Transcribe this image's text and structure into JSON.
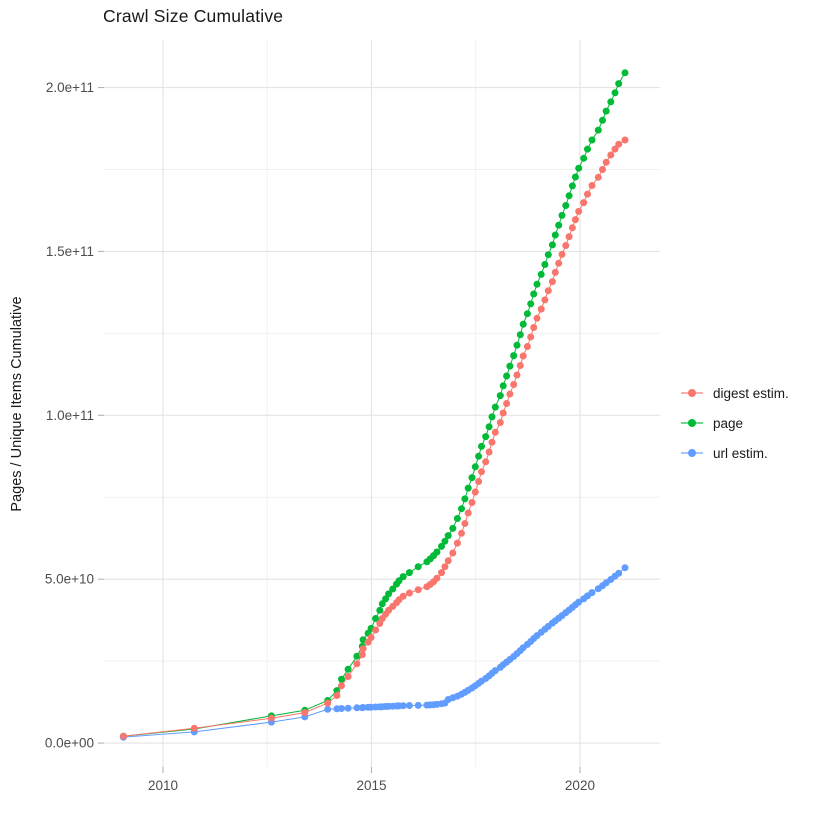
{
  "title": "Crawl Size Cumulative",
  "chart_data": {
    "type": "scatter",
    "title": "Crawl Size Cumulative",
    "xlabel": "",
    "ylabel": "Pages / Unique Items Cumulative",
    "y_unit": "billions of pages / unique items",
    "x_unit": "year",
    "grid": true,
    "legend_position": "right",
    "xlim": [
      2008.585,
      2021.92
    ],
    "ylim_billions": [
      -7.3,
      214.5
    ],
    "x_ticks": {
      "major": [
        2010,
        2015,
        2020
      ],
      "minor": [
        2012.5,
        2017.5
      ],
      "labels": [
        "2010",
        "2015",
        "2020"
      ]
    },
    "y_ticks": {
      "major_billions": [
        0,
        50,
        100,
        150,
        200
      ],
      "minor_billions": [
        25,
        75,
        125,
        175
      ],
      "labels": [
        "0.0e+00",
        "5.0e+10",
        "1.0e+11",
        "1.5e+11",
        "2.0e+11"
      ]
    },
    "series": [
      {
        "name": "digest estim.",
        "color": "#F8766D",
        "points": [
          [
            2009.05,
            2.1
          ],
          [
            2010.75,
            4.5
          ],
          [
            2012.6,
            7.6
          ],
          [
            2013.4,
            9.3
          ],
          [
            2013.95,
            12.2
          ],
          [
            2014.17,
            14.5
          ],
          [
            2014.28,
            17.5
          ],
          [
            2014.44,
            20.3
          ],
          [
            2014.65,
            24.2
          ],
          [
            2014.78,
            27.0
          ],
          [
            2014.8,
            28.8
          ],
          [
            2014.92,
            30.8
          ],
          [
            2014.99,
            32.2
          ],
          [
            2015.1,
            34.5
          ],
          [
            2015.2,
            36.5
          ],
          [
            2015.26,
            38.0
          ],
          [
            2015.34,
            39.3
          ],
          [
            2015.41,
            40.5
          ],
          [
            2015.51,
            41.7
          ],
          [
            2015.6,
            42.8
          ],
          [
            2015.66,
            43.7
          ],
          [
            2015.76,
            44.8
          ],
          [
            2015.91,
            45.8
          ],
          [
            2016.12,
            46.8
          ],
          [
            2016.33,
            47.7
          ],
          [
            2016.41,
            48.4
          ],
          [
            2016.49,
            49.2
          ],
          [
            2016.57,
            50.3
          ],
          [
            2016.68,
            52.0
          ],
          [
            2016.76,
            53.8
          ],
          [
            2016.84,
            55.6
          ],
          [
            2016.95,
            58.0
          ],
          [
            2017.06,
            61.0
          ],
          [
            2017.16,
            64.0
          ],
          [
            2017.24,
            67.0
          ],
          [
            2017.32,
            70.2
          ],
          [
            2017.41,
            73.4
          ],
          [
            2017.49,
            76.6
          ],
          [
            2017.57,
            79.8
          ],
          [
            2017.64,
            82.8
          ],
          [
            2017.74,
            85.8
          ],
          [
            2017.82,
            88.8
          ],
          [
            2017.89,
            91.8
          ],
          [
            2017.97,
            94.8
          ],
          [
            2018.09,
            97.8
          ],
          [
            2018.16,
            100.7
          ],
          [
            2018.24,
            103.6
          ],
          [
            2018.32,
            106.5
          ],
          [
            2018.41,
            109.4
          ],
          [
            2018.49,
            112.3
          ],
          [
            2018.57,
            115.2
          ],
          [
            2018.64,
            118.1
          ],
          [
            2018.74,
            121.0
          ],
          [
            2018.82,
            123.9
          ],
          [
            2018.89,
            126.8
          ],
          [
            2018.97,
            129.6
          ],
          [
            2019.07,
            132.4
          ],
          [
            2019.16,
            135.2
          ],
          [
            2019.24,
            138.0
          ],
          [
            2019.34,
            140.8
          ],
          [
            2019.41,
            143.6
          ],
          [
            2019.49,
            146.4
          ],
          [
            2019.57,
            149.1
          ],
          [
            2019.66,
            151.8
          ],
          [
            2019.74,
            154.5
          ],
          [
            2019.82,
            157.2
          ],
          [
            2019.89,
            159.7
          ],
          [
            2019.97,
            162.2
          ],
          [
            2020.09,
            164.9
          ],
          [
            2020.18,
            167.5
          ],
          [
            2020.29,
            170.1
          ],
          [
            2020.44,
            172.6
          ],
          [
            2020.54,
            175.0
          ],
          [
            2020.63,
            177.2
          ],
          [
            2020.74,
            179.4
          ],
          [
            2020.84,
            181.2
          ],
          [
            2020.93,
            182.7
          ],
          [
            2021.08,
            184.0
          ]
        ]
      },
      {
        "name": "page",
        "color": "#00BA38",
        "points": [
          [
            2009.05,
            2.1
          ],
          [
            2010.75,
            4.3
          ],
          [
            2012.6,
            8.3
          ],
          [
            2013.4,
            10.0
          ],
          [
            2013.95,
            13.0
          ],
          [
            2014.17,
            16.0
          ],
          [
            2014.28,
            19.5
          ],
          [
            2014.44,
            22.5
          ],
          [
            2014.65,
            26.5
          ],
          [
            2014.78,
            29.5
          ],
          [
            2014.8,
            31.5
          ],
          [
            2014.92,
            33.5
          ],
          [
            2014.99,
            35.0
          ],
          [
            2015.1,
            38.0
          ],
          [
            2015.2,
            40.5
          ],
          [
            2015.26,
            42.5
          ],
          [
            2015.34,
            44.0
          ],
          [
            2015.41,
            45.5
          ],
          [
            2015.51,
            47.0
          ],
          [
            2015.6,
            48.5
          ],
          [
            2015.66,
            49.5
          ],
          [
            2015.76,
            50.8
          ],
          [
            2015.91,
            52.0
          ],
          [
            2016.12,
            53.8
          ],
          [
            2016.33,
            55.3
          ],
          [
            2016.41,
            56.2
          ],
          [
            2016.49,
            57.2
          ],
          [
            2016.57,
            58.3
          ],
          [
            2016.68,
            60.0
          ],
          [
            2016.76,
            61.6
          ],
          [
            2016.84,
            63.3
          ],
          [
            2016.95,
            65.5
          ],
          [
            2017.06,
            68.5
          ],
          [
            2017.16,
            71.5
          ],
          [
            2017.24,
            74.5
          ],
          [
            2017.32,
            77.8
          ],
          [
            2017.41,
            81.0
          ],
          [
            2017.49,
            84.3
          ],
          [
            2017.57,
            87.5
          ],
          [
            2017.64,
            90.5
          ],
          [
            2017.74,
            93.5
          ],
          [
            2017.82,
            96.5
          ],
          [
            2017.89,
            99.5
          ],
          [
            2017.97,
            102.5
          ],
          [
            2018.09,
            106.0
          ],
          [
            2018.16,
            109.0
          ],
          [
            2018.24,
            112.0
          ],
          [
            2018.32,
            115.0
          ],
          [
            2018.41,
            118.2
          ],
          [
            2018.49,
            121.4
          ],
          [
            2018.57,
            124.6
          ],
          [
            2018.64,
            127.8
          ],
          [
            2018.74,
            131.0
          ],
          [
            2018.82,
            134.0
          ],
          [
            2018.89,
            137.0
          ],
          [
            2018.97,
            140.0
          ],
          [
            2019.07,
            143.0
          ],
          [
            2019.16,
            146.0
          ],
          [
            2019.24,
            149.0
          ],
          [
            2019.34,
            152.0
          ],
          [
            2019.41,
            155.0
          ],
          [
            2019.49,
            158.0
          ],
          [
            2019.57,
            161.0
          ],
          [
            2019.66,
            164.0
          ],
          [
            2019.74,
            167.0
          ],
          [
            2019.82,
            170.0
          ],
          [
            2019.89,
            172.7
          ],
          [
            2019.97,
            175.4
          ],
          [
            2020.09,
            178.4
          ],
          [
            2020.18,
            181.2
          ],
          [
            2020.29,
            184.0
          ],
          [
            2020.44,
            187.0
          ],
          [
            2020.54,
            190.0
          ],
          [
            2020.63,
            192.8
          ],
          [
            2020.74,
            195.6
          ],
          [
            2020.84,
            198.4
          ],
          [
            2020.93,
            201.2
          ],
          [
            2021.08,
            204.5
          ]
        ]
      },
      {
        "name": "url estim.",
        "color": "#619CFF",
        "points": [
          [
            2009.05,
            1.8
          ],
          [
            2010.75,
            3.4
          ],
          [
            2012.6,
            6.4
          ],
          [
            2013.4,
            8.0
          ],
          [
            2013.95,
            10.3
          ],
          [
            2014.17,
            10.45
          ],
          [
            2014.28,
            10.55
          ],
          [
            2014.44,
            10.65
          ],
          [
            2014.65,
            10.75
          ],
          [
            2014.78,
            10.8
          ],
          [
            2014.8,
            10.85
          ],
          [
            2014.92,
            10.9
          ],
          [
            2014.99,
            10.95
          ],
          [
            2015.1,
            11.0
          ],
          [
            2015.2,
            11.05
          ],
          [
            2015.26,
            11.1
          ],
          [
            2015.34,
            11.15
          ],
          [
            2015.41,
            11.2
          ],
          [
            2015.51,
            11.25
          ],
          [
            2015.6,
            11.3
          ],
          [
            2015.66,
            11.35
          ],
          [
            2015.76,
            11.4
          ],
          [
            2015.91,
            11.45
          ],
          [
            2016.12,
            11.5
          ],
          [
            2016.33,
            11.6
          ],
          [
            2016.41,
            11.65
          ],
          [
            2016.49,
            11.7
          ],
          [
            2016.57,
            11.8
          ],
          [
            2016.68,
            12.0
          ],
          [
            2016.76,
            12.2
          ],
          [
            2016.84,
            13.3
          ],
          [
            2016.95,
            13.8
          ],
          [
            2017.06,
            14.3
          ],
          [
            2017.16,
            14.9
          ],
          [
            2017.24,
            15.5
          ],
          [
            2017.32,
            16.1
          ],
          [
            2017.41,
            16.8
          ],
          [
            2017.49,
            17.5
          ],
          [
            2017.57,
            18.2
          ],
          [
            2017.64,
            18.9
          ],
          [
            2017.74,
            19.7
          ],
          [
            2017.82,
            20.5
          ],
          [
            2017.89,
            21.3
          ],
          [
            2017.97,
            22.1
          ],
          [
            2018.09,
            23.1
          ],
          [
            2018.16,
            23.9
          ],
          [
            2018.24,
            24.7
          ],
          [
            2018.32,
            25.5
          ],
          [
            2018.41,
            26.4
          ],
          [
            2018.49,
            27.3
          ],
          [
            2018.57,
            28.2
          ],
          [
            2018.64,
            29.1
          ],
          [
            2018.74,
            30.1
          ],
          [
            2018.82,
            31.0
          ],
          [
            2018.89,
            31.9
          ],
          [
            2018.97,
            32.8
          ],
          [
            2019.07,
            33.8
          ],
          [
            2019.16,
            34.7
          ],
          [
            2019.24,
            35.6
          ],
          [
            2019.34,
            36.6
          ],
          [
            2019.41,
            37.3
          ],
          [
            2019.49,
            38.1
          ],
          [
            2019.57,
            38.9
          ],
          [
            2019.66,
            39.8
          ],
          [
            2019.74,
            40.6
          ],
          [
            2019.82,
            41.4
          ],
          [
            2019.89,
            42.2
          ],
          [
            2019.97,
            43.0
          ],
          [
            2020.09,
            44.0
          ],
          [
            2020.18,
            44.9
          ],
          [
            2020.29,
            45.9
          ],
          [
            2020.44,
            47.1
          ],
          [
            2020.54,
            48.0
          ],
          [
            2020.63,
            48.9
          ],
          [
            2020.74,
            49.9
          ],
          [
            2020.84,
            50.9
          ],
          [
            2020.93,
            51.8
          ],
          [
            2021.08,
            53.5
          ]
        ]
      }
    ],
    "colors": {
      "digest_estim": "#F8766D",
      "page": "#00BA38",
      "url_estim": "#619CFF",
      "grid_major": "#e4e4e4",
      "grid_minor": "#f0f0f0",
      "axis_text": "#4d4d4d",
      "tick_mark": "#b3b3b3"
    }
  }
}
